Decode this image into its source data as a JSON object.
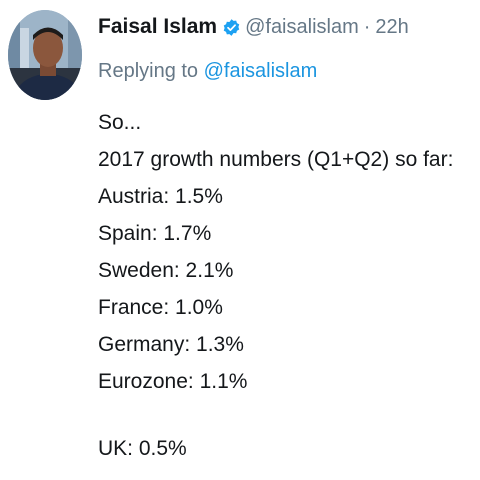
{
  "tweet": {
    "author": {
      "name": "Faisal Islam",
      "handle": "@faisalislam",
      "verified": true,
      "avatar": "profile-photo"
    },
    "separator": "·",
    "time": "22h",
    "reply": {
      "prefix": "Replying to",
      "mention": "@faisalislam"
    },
    "lines": [
      "So...",
      "2017 growth numbers (Q1+Q2) so far:",
      "Austria: 1.5%",
      "Spain: 1.7%",
      "Sweden: 2.1%",
      "France: 1.0%",
      "Germany: 1.3%",
      "Eurozone: 1.1%",
      "",
      "UK: 0.5%"
    ],
    "colors": {
      "text": "#14171a",
      "muted": "#657786",
      "link": "#1b95e0",
      "verified": "#1da1f2"
    }
  }
}
